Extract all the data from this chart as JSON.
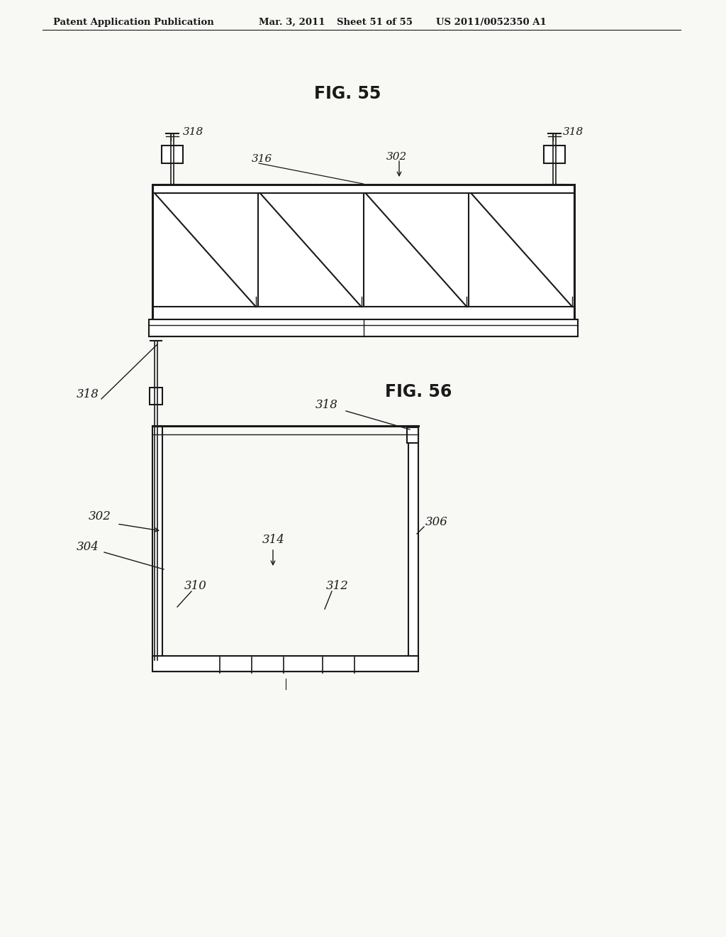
{
  "bg_color": "#f8f8f5",
  "line_color": "#1a1a1a",
  "header_text": "Patent Application Publication",
  "header_date": "Mar. 3, 2011",
  "header_sheet": "Sheet 51 of 55",
  "header_patent": "US 2011/0052350 A1",
  "fig55_title": "FIG. 55",
  "fig56_title": "FIG. 56"
}
